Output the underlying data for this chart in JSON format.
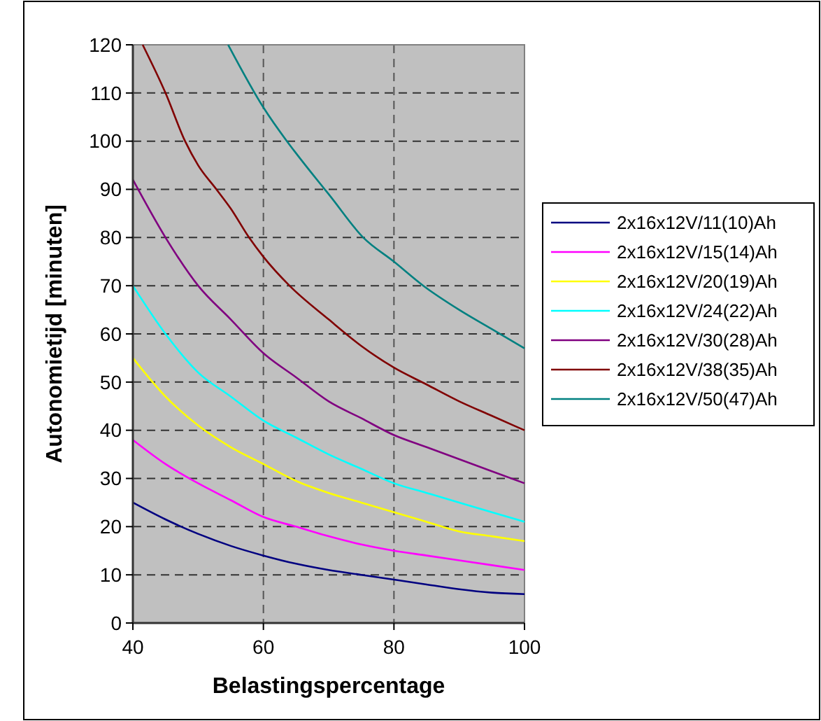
{
  "chart_data": {
    "type": "line",
    "xlabel": "Belastingspercentage",
    "ylabel": "Autonomietijd [minuten]",
    "x": [
      40,
      45,
      50,
      55,
      60,
      65,
      70,
      75,
      80,
      85,
      90,
      95,
      100
    ],
    "xlim": [
      40,
      100
    ],
    "xticks": [
      40,
      60,
      80,
      100
    ],
    "ylim": [
      0,
      120
    ],
    "yticks": [
      0,
      10,
      20,
      30,
      40,
      50,
      60,
      70,
      80,
      90,
      100,
      110,
      120
    ],
    "grid": true,
    "legend": "right",
    "marker": "none",
    "series": [
      {
        "name": "2x16x12V/11(10)Ah",
        "color": "#000080",
        "values": [
          25,
          21.5,
          18.5,
          16,
          14,
          12.3,
          11,
          10,
          9,
          8,
          7,
          6.3,
          6
        ]
      },
      {
        "name": "2x16x12V/15(14)Ah",
        "color": "#ff00ff",
        "values": [
          38,
          33,
          29,
          25.5,
          22,
          20,
          18,
          16.3,
          15,
          14,
          13,
          12,
          11
        ]
      },
      {
        "name": "2x16x12V/20(19)Ah",
        "color": "#ffff00",
        "values": [
          55,
          47,
          41,
          36.5,
          33,
          29.5,
          27,
          25,
          23,
          21,
          19,
          18,
          17
        ]
      },
      {
        "name": "2x16x12V/24(22)Ah",
        "color": "#00ffff",
        "values": [
          70,
          60,
          52,
          47,
          42,
          38.5,
          35,
          32,
          29,
          27,
          25,
          23,
          21
        ]
      },
      {
        "name": "2x16x12V/30(28)Ah",
        "color": "#800080",
        "values": [
          92,
          80,
          70,
          63,
          56,
          51,
          46,
          42.5,
          39,
          36.5,
          34,
          31.5,
          29
        ]
      },
      {
        "name": "2x16x12V/38(35)Ah",
        "color": "#800000",
        "x": [
          41.5,
          45,
          48,
          50,
          52.8,
          55,
          57.8,
          60,
          64,
          70,
          75,
          80,
          85,
          90,
          95,
          100
        ],
        "values": [
          120,
          110,
          100,
          95,
          90,
          86,
          80,
          76,
          70,
          63,
          57.5,
          53,
          49.5,
          46,
          43,
          40
        ]
      },
      {
        "name": "2x16x12V/50(47)Ah",
        "color": "#008080",
        "x": [
          54.6,
          60,
          63.6,
          65,
          69.4,
          70,
          75.3,
          80,
          84.5,
          90,
          95,
          100
        ],
        "values": [
          120,
          107,
          100,
          97.5,
          90,
          89,
          80,
          75,
          70,
          65,
          61,
          57
        ]
      }
    ]
  }
}
